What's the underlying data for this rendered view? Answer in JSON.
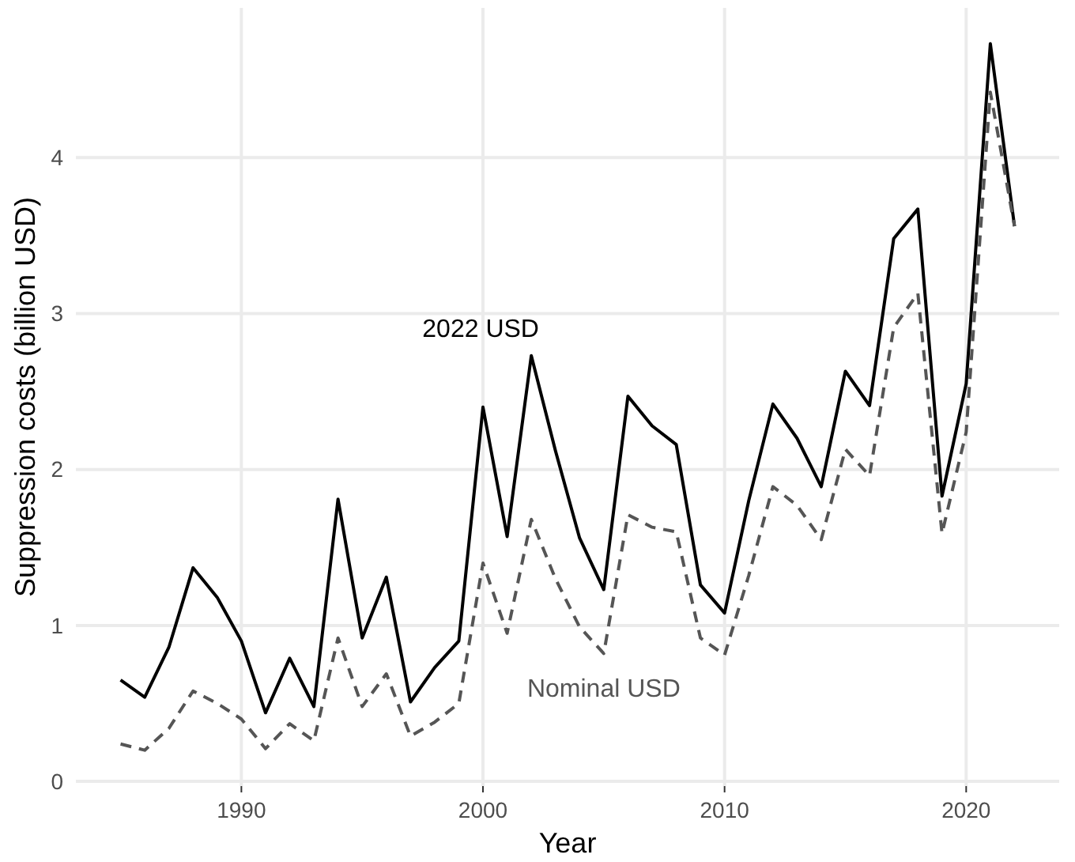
{
  "chart_data": {
    "type": "line",
    "xlabel": "Year",
    "ylabel": "Suppression costs (billion USD)",
    "x": [
      1985,
      1986,
      1987,
      1988,
      1989,
      1990,
      1991,
      1992,
      1993,
      1994,
      1995,
      1996,
      1997,
      1998,
      1999,
      2000,
      2001,
      2002,
      2003,
      2004,
      2005,
      2006,
      2007,
      2008,
      2009,
      2010,
      2011,
      2012,
      2013,
      2014,
      2015,
      2016,
      2017,
      2018,
      2019,
      2020,
      2021,
      2022
    ],
    "series": [
      {
        "color": "#000000",
        "line_style": "solid",
        "values": [
          0.65,
          0.54,
          0.86,
          1.37,
          1.18,
          0.9,
          0.44,
          0.79,
          0.48,
          1.81,
          0.92,
          1.31,
          0.51,
          0.73,
          0.9,
          2.4,
          1.57,
          2.73,
          2.12,
          1.56,
          1.23,
          2.47,
          2.28,
          2.16,
          1.26,
          1.08,
          1.8,
          2.42,
          2.2,
          1.89,
          2.63,
          2.41,
          3.48,
          3.67,
          1.83,
          2.55,
          4.73,
          3.56
        ]
      },
      {
        "color": "#555555",
        "line_style": "dashed",
        "values": [
          0.24,
          0.2,
          0.34,
          0.58,
          0.5,
          0.4,
          0.21,
          0.37,
          0.26,
          0.92,
          0.48,
          0.69,
          0.29,
          0.38,
          0.5,
          1.4,
          0.95,
          1.68,
          1.3,
          0.99,
          0.82,
          1.71,
          1.63,
          1.6,
          0.92,
          0.81,
          1.32,
          1.89,
          1.77,
          1.55,
          2.13,
          1.96,
          2.91,
          3.13,
          1.59,
          2.24,
          4.42,
          3.56
        ]
      }
    ],
    "annotations": [
      {
        "text": "2022 USD",
        "x": 2002,
        "y": 2.73
      },
      {
        "text": "Nominal USD",
        "x": 2005,
        "y": 0.82
      }
    ],
    "xlim": [
      1983.15,
      2023.85
    ],
    "xticks": [
      1990,
      2000,
      2010,
      2020
    ],
    "ylim": [
      -0.03,
      4.96
    ],
    "yticks": [
      0,
      1,
      2,
      3,
      4
    ],
    "grid": true
  }
}
